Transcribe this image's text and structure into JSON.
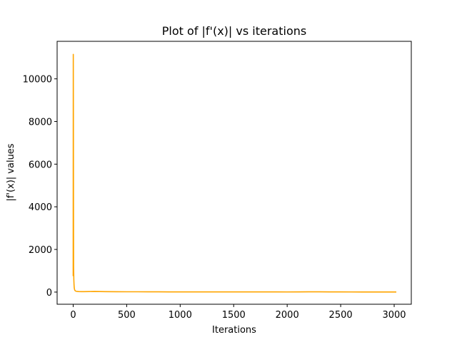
{
  "chart_data": {
    "type": "line",
    "title": "Plot of |f'(x)| vs iterations",
    "xlabel": "Iterations",
    "ylabel": "|f'(x)| values",
    "xlim": [
      -150,
      3160
    ],
    "ylim": [
      -570,
      11760
    ],
    "xticks": [
      0,
      500,
      1000,
      1500,
      2000,
      2500,
      3000
    ],
    "yticks": [
      0,
      2000,
      4000,
      6000,
      8000,
      10000
    ],
    "grid": false,
    "legend": "none",
    "series": [
      {
        "color": "#FFA500",
        "x": [
          0,
          1,
          2,
          3,
          4,
          5,
          6,
          8,
          10,
          13,
          16,
          20,
          25,
          30,
          40,
          50,
          75,
          100,
          150,
          200,
          250,
          300,
          400,
          500,
          600,
          700,
          800,
          900,
          1000,
          1100,
          1200,
          1300,
          1400,
          1500,
          1600,
          1700,
          1800,
          1900,
          2000,
          2100,
          2200,
          2300,
          2400,
          2500,
          2600,
          2700,
          2800,
          2900,
          3000,
          3020
        ],
        "y": [
          750,
          11150,
          8500,
          4000,
          1200,
          900,
          600,
          350,
          200,
          120,
          80,
          60,
          45,
          35,
          30,
          25,
          20,
          20,
          25,
          30,
          25,
          20,
          18,
          15,
          15,
          12,
          12,
          10,
          10,
          10,
          8,
          8,
          8,
          10,
          8,
          8,
          10,
          8,
          6,
          8,
          12,
          12,
          10,
          8,
          6,
          5,
          5,
          4,
          4,
          4
        ]
      }
    ]
  }
}
